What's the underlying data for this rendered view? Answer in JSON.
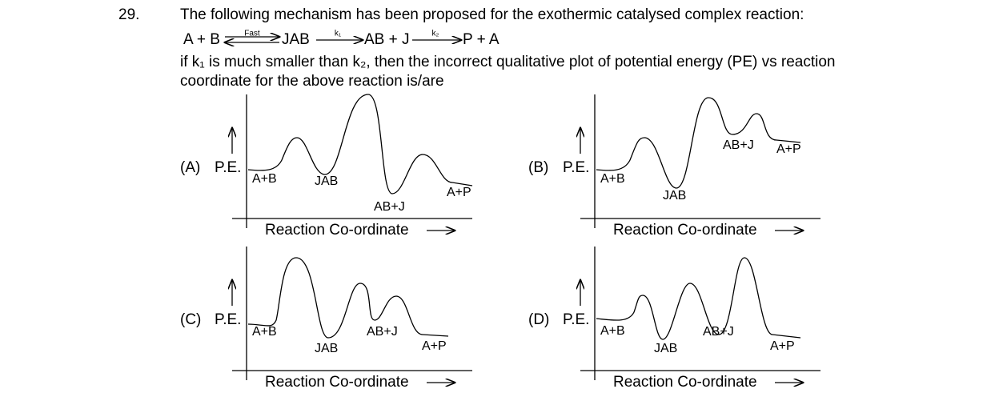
{
  "question": {
    "number": "29.",
    "text": "The following mechanism has been proposed for the exothermic catalysed complex reaction:",
    "mechanism": {
      "reactants": "A + B",
      "step1_label": "Fast",
      "intermediate": "JAB",
      "step2_label": "k₁",
      "products1": "AB + J",
      "step3_label": "k₂",
      "products2": "P + A"
    },
    "condition": [
      "if k₁ is much smaller than k₂, then the incorrect qualitative plot of potential energy (PE) vs reaction",
      "coordinate for the above reaction is/are"
    ]
  },
  "options": [
    {
      "id": "(A)",
      "axis_label": "P.E.",
      "x_label": "Reaction Co-ordinate",
      "points": [
        "A+B",
        "JAB",
        "AB+J",
        "A+P"
      ]
    },
    {
      "id": "(B)",
      "axis_label": "P.E.",
      "x_label": "Reaction Co-ordinate",
      "points": [
        "A+B",
        "JAB",
        "AB+J",
        "A+P"
      ]
    },
    {
      "id": "(C)",
      "axis_label": "P.E.",
      "x_label": "Reaction Co-ordinate",
      "points": [
        "A+B",
        "JAB",
        "AB+J",
        "A+P"
      ]
    },
    {
      "id": "(D)",
      "axis_label": "P.E.",
      "x_label": "Reaction Co-ordinate",
      "points": [
        "A+B",
        "JAB",
        "AB+J",
        "A+P"
      ]
    }
  ]
}
